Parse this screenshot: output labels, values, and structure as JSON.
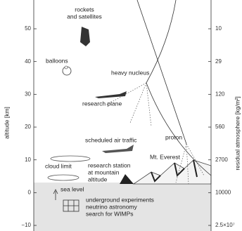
{
  "left_axis": {
    "label": "altitude [km]",
    "ticks": [
      "50",
      "40",
      "30",
      "20",
      "10",
      "0",
      "−10"
    ]
  },
  "right_axis": {
    "label": "residual atmosphere [kg/m²]",
    "ticks": [
      "10",
      "29",
      "120",
      "560",
      "2700",
      "10000",
      "2.5×10⁷"
    ]
  },
  "labels": {
    "rockets": [
      "rockets",
      "and satellites"
    ],
    "balloons": [
      "balloons"
    ],
    "heavy_nucleus": [
      "heavy nucleus"
    ],
    "research_plane": [
      "research plane"
    ],
    "air_traffic": [
      "scheduled air traffic"
    ],
    "cloud_limit": [
      "cloud limit"
    ],
    "research_station": [
      "research station",
      "at mountain",
      "altitude"
    ],
    "everest": [
      "Mt. Everest"
    ],
    "proton": [
      "proton"
    ],
    "sea_level": [
      "sea level"
    ],
    "underground": [
      "underground experiments",
      "neutrino astronomy",
      "search for WIMPs"
    ]
  }
}
